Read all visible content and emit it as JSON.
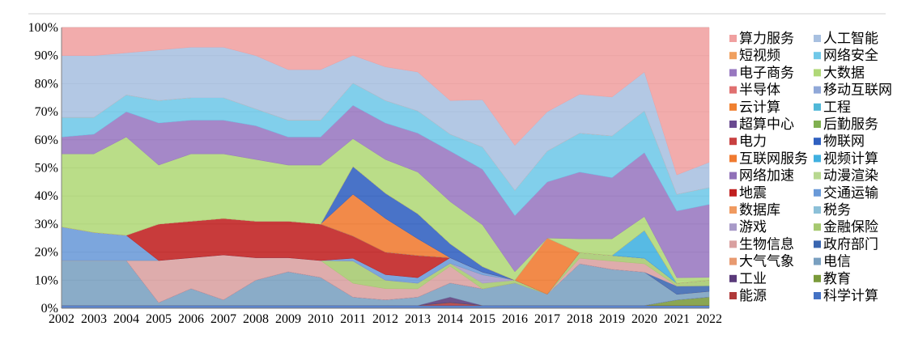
{
  "chart_data": {
    "type": "area",
    "stacked": "percent",
    "title": "",
    "xlabel": "",
    "ylabel": "",
    "grid": true,
    "legend_position": "right",
    "ylim": [
      0,
      100
    ],
    "y_ticks": [
      "0%",
      "10%",
      "20%",
      "30%",
      "40%",
      "50%",
      "60%",
      "70%",
      "80%",
      "90%",
      "100%"
    ],
    "x": [
      "2002",
      "2003",
      "2004",
      "2005",
      "2006",
      "2007",
      "2008",
      "2009",
      "2010",
      "2011",
      "2012",
      "2013",
      "2014",
      "2015",
      "2016",
      "2017",
      "2018",
      "2019",
      "2020",
      "2021",
      "2022"
    ],
    "series": [
      {
        "name": "科学计算",
        "color": "#4472c4",
        "values": [
          1,
          1,
          1,
          1,
          1,
          1,
          1,
          1,
          1,
          1,
          1,
          1,
          1,
          1,
          1,
          1,
          1,
          1,
          1,
          1,
          1
        ]
      },
      {
        "name": "能源",
        "color": "#b03a3a",
        "values": [
          0,
          0,
          0,
          0,
          0,
          0,
          0,
          0,
          0,
          0,
          0,
          0,
          1,
          0,
          0,
          0,
          0,
          0,
          0,
          0,
          0
        ]
      },
      {
        "name": "教育",
        "color": "#7a9a3a",
        "values": [
          0,
          0,
          0,
          0,
          0,
          0,
          0,
          0,
          0,
          0,
          0,
          0,
          0,
          0,
          0,
          0,
          0,
          0,
          0,
          2,
          3
        ]
      },
      {
        "name": "工业",
        "color": "#5a3a7a",
        "values": [
          0,
          0,
          0,
          0,
          0,
          0,
          0,
          0,
          0,
          0,
          0,
          0,
          2,
          0,
          0,
          0,
          0,
          0,
          0,
          0,
          0
        ]
      },
      {
        "name": "电信",
        "color": "#7aa0c0",
        "values": [
          16,
          16,
          16,
          1,
          6,
          2,
          9,
          12,
          10,
          3,
          2,
          3,
          5,
          6,
          8,
          4,
          15,
          13,
          12,
          2,
          2
        ]
      },
      {
        "name": "大气气象",
        "color": "#e89a70",
        "values": [
          0,
          0,
          0,
          0,
          0,
          0,
          0,
          0,
          0,
          0,
          0,
          0,
          0,
          0,
          0,
          0,
          0,
          0,
          0,
          0,
          0
        ]
      },
      {
        "name": "政府部门",
        "color": "#3a66b0",
        "values": [
          0,
          0,
          0,
          0,
          0,
          0,
          0,
          0,
          0,
          0,
          0,
          0,
          0,
          0,
          0,
          0,
          0,
          0,
          0,
          3,
          2
        ]
      },
      {
        "name": "生物信息",
        "color": "#d9a0a0",
        "values": [
          0,
          0,
          0,
          15,
          11,
          16,
          8,
          5,
          6,
          5,
          4,
          3,
          6,
          0,
          0,
          0,
          2,
          3,
          3,
          0,
          0
        ]
      },
      {
        "name": "金融保险",
        "color": "#a6c970",
        "values": [
          0,
          0,
          0,
          0,
          0,
          0,
          0,
          0,
          0,
          8,
          3,
          2,
          1,
          2,
          1,
          0,
          2,
          2,
          2,
          1,
          2
        ]
      },
      {
        "name": "游戏",
        "color": "#a89ac8",
        "values": [
          0,
          0,
          0,
          0,
          0,
          0,
          0,
          0,
          0,
          0,
          0,
          0,
          0,
          3,
          0,
          0,
          0,
          0,
          0,
          0,
          0
        ]
      },
      {
        "name": "税务",
        "color": "#8cc0d8",
        "values": [
          0,
          0,
          0,
          0,
          0,
          0,
          0,
          0,
          0,
          0,
          0,
          0,
          0,
          0,
          0,
          0,
          0,
          0,
          0,
          0,
          0
        ]
      },
      {
        "name": "数据库",
        "color": "#f09a60",
        "values": [
          0,
          0,
          0,
          0,
          0,
          0,
          0,
          0,
          0,
          0,
          0,
          0,
          0,
          0,
          0,
          0,
          0,
          0,
          0,
          0,
          0
        ]
      },
      {
        "name": "交通运输",
        "color": "#6a9ad8",
        "values": [
          12,
          10,
          9,
          0,
          0,
          0,
          0,
          0,
          0,
          1,
          2,
          2,
          2,
          1,
          0,
          0,
          0,
          0,
          0,
          0,
          0
        ]
      },
      {
        "name": "地震",
        "color": "#c02020",
        "values": [
          0,
          0,
          0,
          13,
          13,
          13,
          13,
          13,
          13,
          8,
          8,
          8,
          0,
          0,
          0,
          0,
          0,
          0,
          0,
          0,
          0
        ]
      },
      {
        "name": "动漫渲染",
        "color": "#b8d890",
        "values": [
          0,
          0,
          0,
          0,
          0,
          0,
          0,
          0,
          0,
          0,
          0,
          0,
          0,
          0,
          0,
          0,
          0,
          0,
          0,
          0,
          0
        ]
      },
      {
        "name": "网络加速",
        "color": "#9070b8",
        "values": [
          0,
          0,
          0,
          0,
          0,
          0,
          0,
          0,
          0,
          0,
          0,
          0,
          0,
          0,
          0,
          0,
          0,
          0,
          0,
          0,
          0
        ]
      },
      {
        "name": "视频计算",
        "color": "#40b0e0",
        "values": [
          0,
          0,
          0,
          0,
          0,
          0,
          0,
          0,
          0,
          0,
          0,
          0,
          0,
          0,
          0,
          0,
          0,
          0,
          10,
          0,
          0
        ]
      },
      {
        "name": "互联网服务",
        "color": "#f07a30",
        "values": [
          0,
          0,
          0,
          0,
          0,
          0,
          0,
          0,
          0,
          15,
          12,
          6,
          0,
          0,
          0,
          20,
          0,
          0,
          0,
          0,
          0
        ]
      },
      {
        "name": "物联网",
        "color": "#3060c0",
        "values": [
          0,
          0,
          0,
          0,
          0,
          0,
          0,
          0,
          0,
          10,
          9,
          9,
          5,
          2,
          0,
          0,
          0,
          0,
          0,
          0,
          0
        ]
      },
      {
        "name": "电力",
        "color": "#c84040",
        "values": [
          0,
          0,
          0,
          0,
          0,
          0,
          0,
          0,
          0,
          0,
          0,
          0,
          0,
          0,
          0,
          0,
          0,
          0,
          0,
          0,
          0
        ]
      },
      {
        "name": "后勤服务",
        "color": "#80b050",
        "values": [
          0,
          0,
          0,
          0,
          0,
          0,
          0,
          0,
          0,
          0,
          0,
          0,
          0,
          0,
          0,
          0,
          0,
          0,
          0,
          0,
          0
        ]
      },
      {
        "name": "超算中心",
        "color": "#6a4a90",
        "values": [
          0,
          0,
          0,
          0,
          0,
          0,
          0,
          0,
          0,
          0,
          0,
          0,
          0,
          0,
          0,
          0,
          0,
          0,
          0,
          0,
          0
        ]
      },
      {
        "name": "工程",
        "color": "#50b8d8",
        "values": [
          0,
          0,
          0,
          0,
          0,
          0,
          0,
          0,
          0,
          0,
          0,
          0,
          0,
          0,
          0,
          0,
          0,
          0,
          0,
          0,
          0
        ]
      },
      {
        "name": "云计算",
        "color": "#f08030",
        "values": [
          0,
          0,
          0,
          0,
          0,
          0,
          0,
          0,
          0,
          0,
          0,
          0,
          0,
          0,
          0,
          0,
          0,
          0,
          0,
          0,
          0
        ]
      },
      {
        "name": "移动互联网",
        "color": "#90a8d8",
        "values": [
          0,
          0,
          0,
          0,
          0,
          0,
          0,
          0,
          0,
          0,
          0,
          0,
          0,
          0,
          0,
          0,
          0,
          0,
          0,
          0,
          0
        ]
      },
      {
        "name": "半导体",
        "color": "#e07070",
        "values": [
          0,
          0,
          0,
          0,
          0,
          0,
          0,
          0,
          0,
          0,
          0,
          0,
          0,
          0,
          0,
          0,
          0,
          0,
          0,
          0,
          0
        ]
      },
      {
        "name": "大数据",
        "color": "#b0d878",
        "values": [
          26,
          28,
          35,
          21,
          24,
          23,
          22,
          20,
          21,
          10,
          12,
          15,
          15,
          15,
          3,
          0,
          5,
          6,
          5,
          2,
          1
        ]
      },
      {
        "name": "电子商务",
        "color": "#9878c0",
        "values": [
          6,
          7,
          9,
          15,
          12,
          12,
          12,
          10,
          10,
          12,
          13,
          14,
          18,
          20,
          20,
          20,
          24,
          22,
          23,
          24,
          26
        ]
      },
      {
        "name": "网络安全",
        "color": "#70c8e8",
        "values": [
          7,
          6,
          6,
          8,
          8,
          8,
          6,
          6,
          6,
          8,
          8,
          8,
          6,
          8,
          9,
          11,
          14,
          15,
          15,
          6,
          6
        ]
      },
      {
        "name": "短视频",
        "color": "#f0a060",
        "values": [
          0,
          0,
          0,
          0,
          0,
          0,
          0,
          0,
          0,
          0,
          0,
          0,
          0,
          0,
          0,
          0,
          0,
          0,
          0,
          0,
          0
        ]
      },
      {
        "name": "人工智能",
        "color": "#a8c0e0",
        "values": [
          22,
          22,
          15,
          18,
          18,
          18,
          19,
          18,
          18,
          10,
          12,
          14,
          12,
          17,
          16,
          14,
          14,
          14,
          14,
          7,
          9
        ]
      },
      {
        "name": "算力服务",
        "color": "#f0a0a0",
        "values": [
          10,
          10,
          9,
          8,
          7,
          7,
          10,
          15,
          15,
          10,
          14,
          16,
          26,
          26,
          42,
          30,
          24,
          25,
          16,
          53,
          48
        ]
      }
    ]
  }
}
